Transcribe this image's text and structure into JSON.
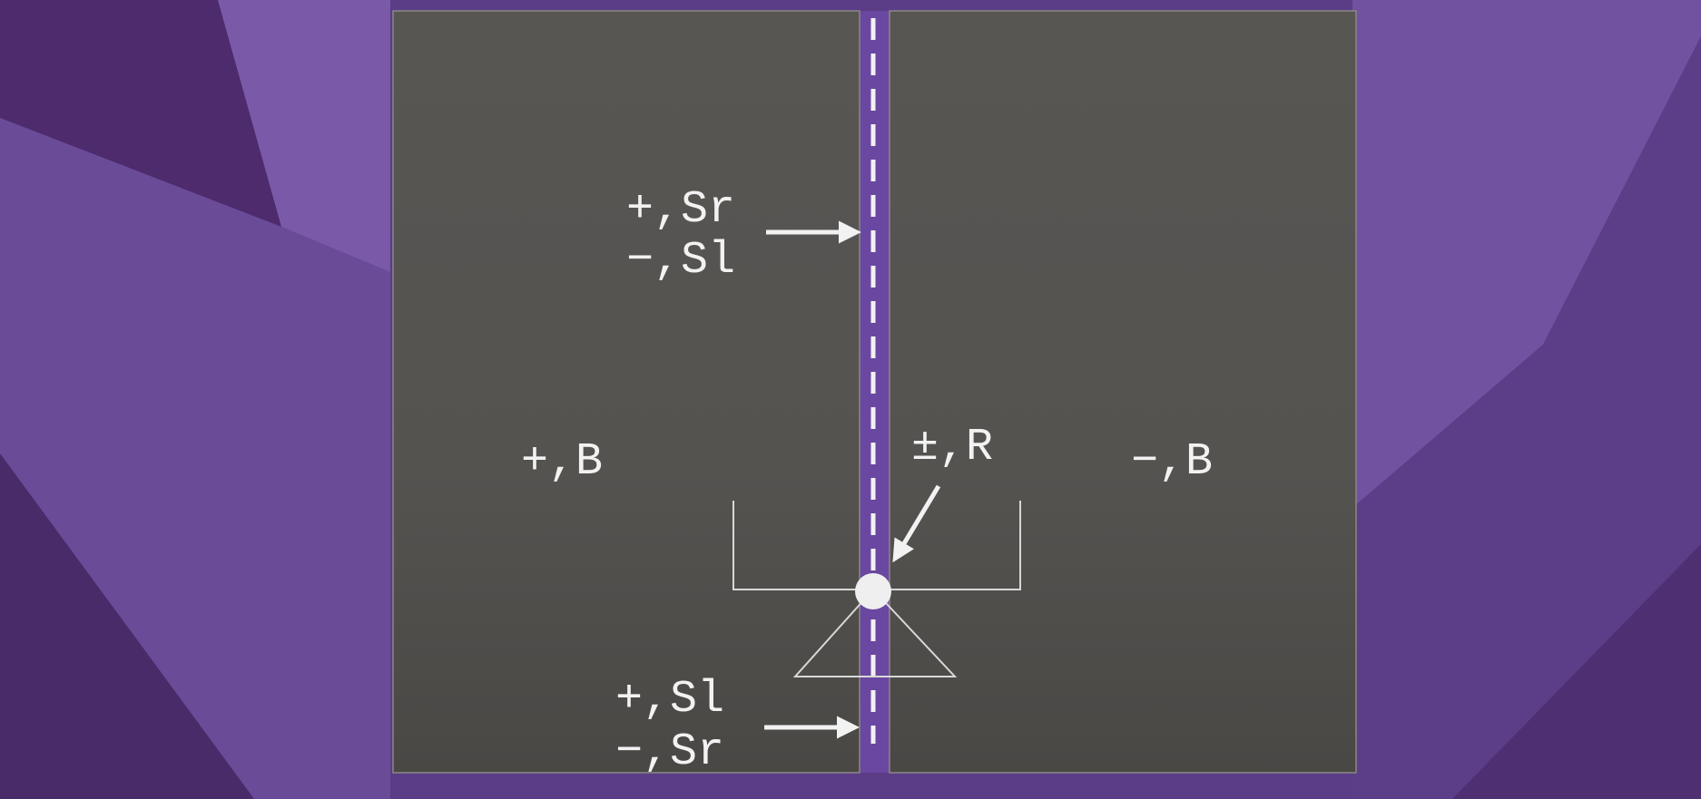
{
  "colors": {
    "background": "#5b3c86",
    "panel": "#565450",
    "divider_strip": "#6a47a0",
    "foreground": "#f2f2f2"
  },
  "labels": {
    "top_left_line1": "+,Sr",
    "top_left_line2": "−,Sl",
    "left_region": "+,B",
    "center_node": "±,R",
    "right_region": "−,B",
    "bottom_left_line1": "+,Sl",
    "bottom_left_line2": "−,Sr"
  }
}
